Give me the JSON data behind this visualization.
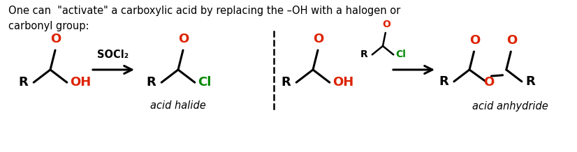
{
  "bg_color": "#ffffff",
  "text_color_black": "#000000",
  "text_color_red": "#dd2200",
  "text_color_green": "#008800",
  "header_text": "One can  \"activate\" a carboxylic acid by replacing the –OH with a halogen or\ncarbonyl group:",
  "label_acid_halide": "acid halide",
  "label_acid_anhydride": "acid anhydride",
  "reagent_label": "SOCl₂",
  "figsize": [
    8.26,
    2.18
  ],
  "dpi": 100
}
